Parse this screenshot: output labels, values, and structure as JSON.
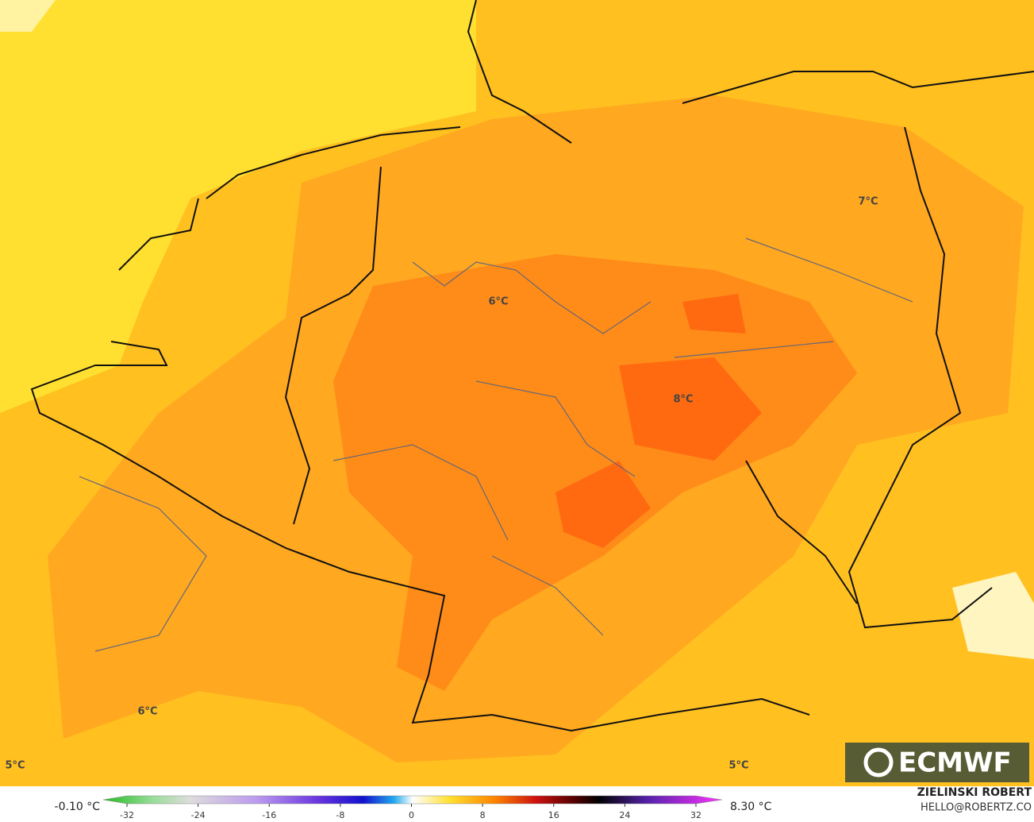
{
  "map": {
    "labels": [
      "6°C",
      "7°C",
      "8°C",
      "6°C",
      "5°C",
      "5°C"
    ],
    "logo": "ECMWF"
  },
  "colorbar": {
    "min_label": "-0.10 °C",
    "max_label": "8.30 °C",
    "ticks": [
      -32,
      -24,
      -16,
      -8,
      0,
      8,
      16,
      24,
      32
    ]
  },
  "credit": {
    "author": "ZIELINSKI ROBERT",
    "contact": "HELLO@ROBERTZ.CO"
  }
}
